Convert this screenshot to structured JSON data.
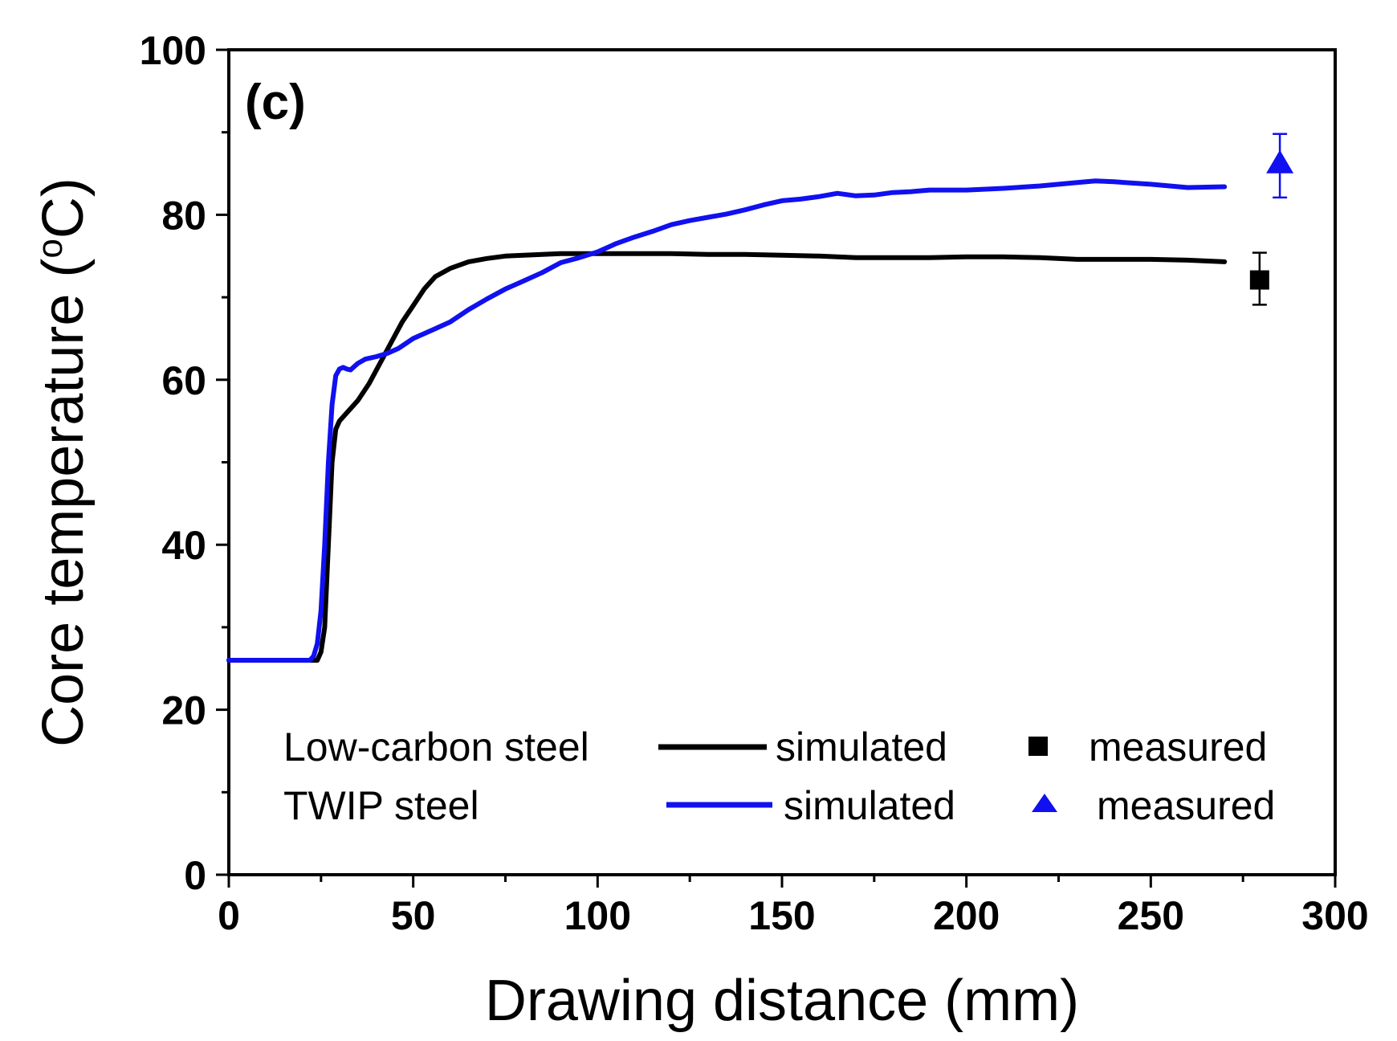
{
  "chart_data": {
    "type": "line",
    "panel_label": "(c)",
    "xlabel": "Drawing distance (mm)",
    "ylabel_main": "Core temperature (",
    "ylabel_sup": "o",
    "ylabel_end": "C)",
    "xlim": [
      0,
      300
    ],
    "ylim": [
      0,
      100
    ],
    "x_ticks": [
      0,
      50,
      100,
      150,
      200,
      250,
      300
    ],
    "x_tick_labels": [
      "0",
      "50",
      "100",
      "150",
      "200",
      "250",
      "300"
    ],
    "y_ticks": [
      0,
      20,
      40,
      60,
      80,
      100
    ],
    "y_tick_labels": [
      "0",
      "20",
      "40",
      "60",
      "80",
      "100"
    ],
    "grid": false,
    "series": [
      {
        "name": "Low-carbon steel simulated",
        "color": "#000000",
        "x": [
          0,
          22,
          24,
          25,
          26,
          27,
          28,
          29,
          30,
          32,
          35,
          38,
          41,
          44,
          47,
          50,
          53,
          56,
          60,
          65,
          70,
          75,
          80,
          85,
          90,
          95,
          100,
          110,
          120,
          130,
          140,
          150,
          160,
          170,
          180,
          190,
          200,
          210,
          220,
          230,
          240,
          250,
          260,
          270
        ],
        "y": [
          26,
          26,
          26,
          27,
          30,
          40,
          50,
          54,
          55,
          56,
          57.5,
          59.5,
          62,
          64.5,
          67,
          69,
          71,
          72.5,
          73.5,
          74.3,
          74.7,
          75,
          75.1,
          75.2,
          75.3,
          75.3,
          75.3,
          75.3,
          75.3,
          75.2,
          75.2,
          75.1,
          75,
          74.8,
          74.8,
          74.8,
          74.9,
          74.9,
          74.8,
          74.6,
          74.6,
          74.6,
          74.5,
          74.3
        ]
      },
      {
        "name": "TWIP steel simulated",
        "color": "#1010f0",
        "x": [
          0,
          22,
          23,
          24,
          25,
          26,
          27,
          28,
          29,
          30,
          31,
          32,
          33,
          35,
          37,
          40,
          43,
          46,
          50,
          55,
          60,
          65,
          70,
          75,
          80,
          85,
          90,
          95,
          100,
          105,
          110,
          115,
          120,
          125,
          130,
          135,
          140,
          145,
          150,
          155,
          160,
          165,
          170,
          175,
          180,
          185,
          190,
          195,
          200,
          210,
          220,
          230,
          235,
          240,
          250,
          260,
          270
        ],
        "y": [
          26,
          26,
          26.5,
          28,
          32,
          40,
          50,
          57,
          60.5,
          61.3,
          61.5,
          61.3,
          61.2,
          62,
          62.5,
          62.8,
          63.2,
          63.8,
          65,
          66,
          67,
          68.5,
          69.8,
          71,
          72,
          73,
          74.2,
          74.8,
          75.5,
          76.5,
          77.3,
          78,
          78.8,
          79.3,
          79.7,
          80.1,
          80.6,
          81.2,
          81.7,
          81.9,
          82.2,
          82.6,
          82.3,
          82.4,
          82.7,
          82.8,
          83,
          83,
          83,
          83.2,
          83.5,
          83.9,
          84.1,
          84,
          83.7,
          83.3,
          83.4
        ]
      }
    ],
    "measured": [
      {
        "name": "Low-carbon steel measured",
        "marker": "square",
        "color": "#000000",
        "x": 279.5,
        "y": 72.1,
        "yerr_low": 69.1,
        "yerr_high": 75.4
      },
      {
        "name": "TWIP steel measured",
        "marker": "triangle",
        "color": "#1010f0",
        "x": 285,
        "y": 86.2,
        "yerr_low": 82.1,
        "yerr_high": 89.8
      }
    ],
    "legend": {
      "placement": "bottom",
      "rows": [
        {
          "material": "Low-carbon steel",
          "line_label": "simulated",
          "marker_label": "measured",
          "color": "#000000",
          "marker": "square"
        },
        {
          "material": "TWIP steel",
          "line_label": "simulated",
          "marker_label": "measured",
          "color": "#1010f0",
          "marker": "triangle"
        }
      ]
    }
  }
}
